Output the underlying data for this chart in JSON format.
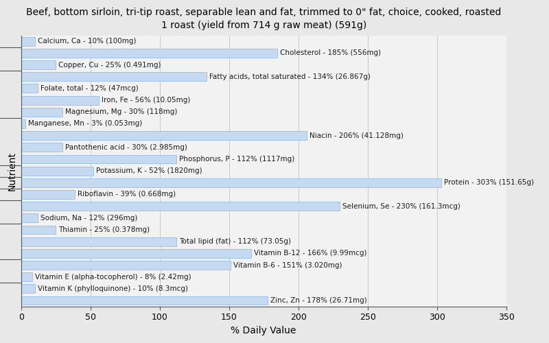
{
  "title": "Beef, bottom sirloin, tri-tip roast, separable lean and fat, trimmed to 0\" fat, choice, cooked, roasted\n1 roast (yield from 714 g raw meat) (591g)",
  "xlabel": "% Daily Value",
  "ylabel": "Nutrient",
  "nutrients": [
    "Calcium, Ca - 10% (100mg)",
    "Cholesterol - 185% (556mg)",
    "Copper, Cu - 25% (0.491mg)",
    "Fatty acids, total saturated - 134% (26.867g)",
    "Folate, total - 12% (47mcg)",
    "Iron, Fe - 56% (10.05mg)",
    "Magnesium, Mg - 30% (118mg)",
    "Manganese, Mn - 3% (0.053mg)",
    "Niacin - 206% (41.128mg)",
    "Pantothenic acid - 30% (2.985mg)",
    "Phosphorus, P - 112% (1117mg)",
    "Potassium, K - 52% (1820mg)",
    "Protein - 303% (151.65g)",
    "Riboflavin - 39% (0.668mg)",
    "Selenium, Se - 230% (161.3mcg)",
    "Sodium, Na - 12% (296mg)",
    "Thiamin - 25% (0.378mg)",
    "Total lipid (fat) - 112% (73.05g)",
    "Vitamin B-12 - 166% (9.99mcg)",
    "Vitamin B-6 - 151% (3.020mg)",
    "Vitamin E (alpha-tocopherol) - 8% (2.42mg)",
    "Vitamin K (phylloquinone) - 10% (8.3mcg)",
    "Zinc, Zn - 178% (26.71mg)"
  ],
  "values": [
    10,
    185,
    25,
    134,
    12,
    56,
    30,
    3,
    206,
    30,
    112,
    52,
    303,
    39,
    230,
    12,
    25,
    112,
    166,
    151,
    8,
    10,
    178
  ],
  "bar_color": "#c5d9f1",
  "bar_edge_color": "#8db4e2",
  "background_color": "#e8e8e8",
  "plot_background_color": "#f2f2f2",
  "xlim": [
    0,
    350
  ],
  "xticks": [
    0,
    50,
    100,
    150,
    200,
    250,
    300,
    350
  ],
  "title_fontsize": 10,
  "label_fontsize": 7.5,
  "tick_fontsize": 9,
  "axis_label_fontsize": 10,
  "group_tick_boundaries": [
    21.5,
    19.5,
    15.5,
    11.5,
    10.5,
    9.5,
    8.5,
    6.5,
    3.5,
    1.5
  ]
}
